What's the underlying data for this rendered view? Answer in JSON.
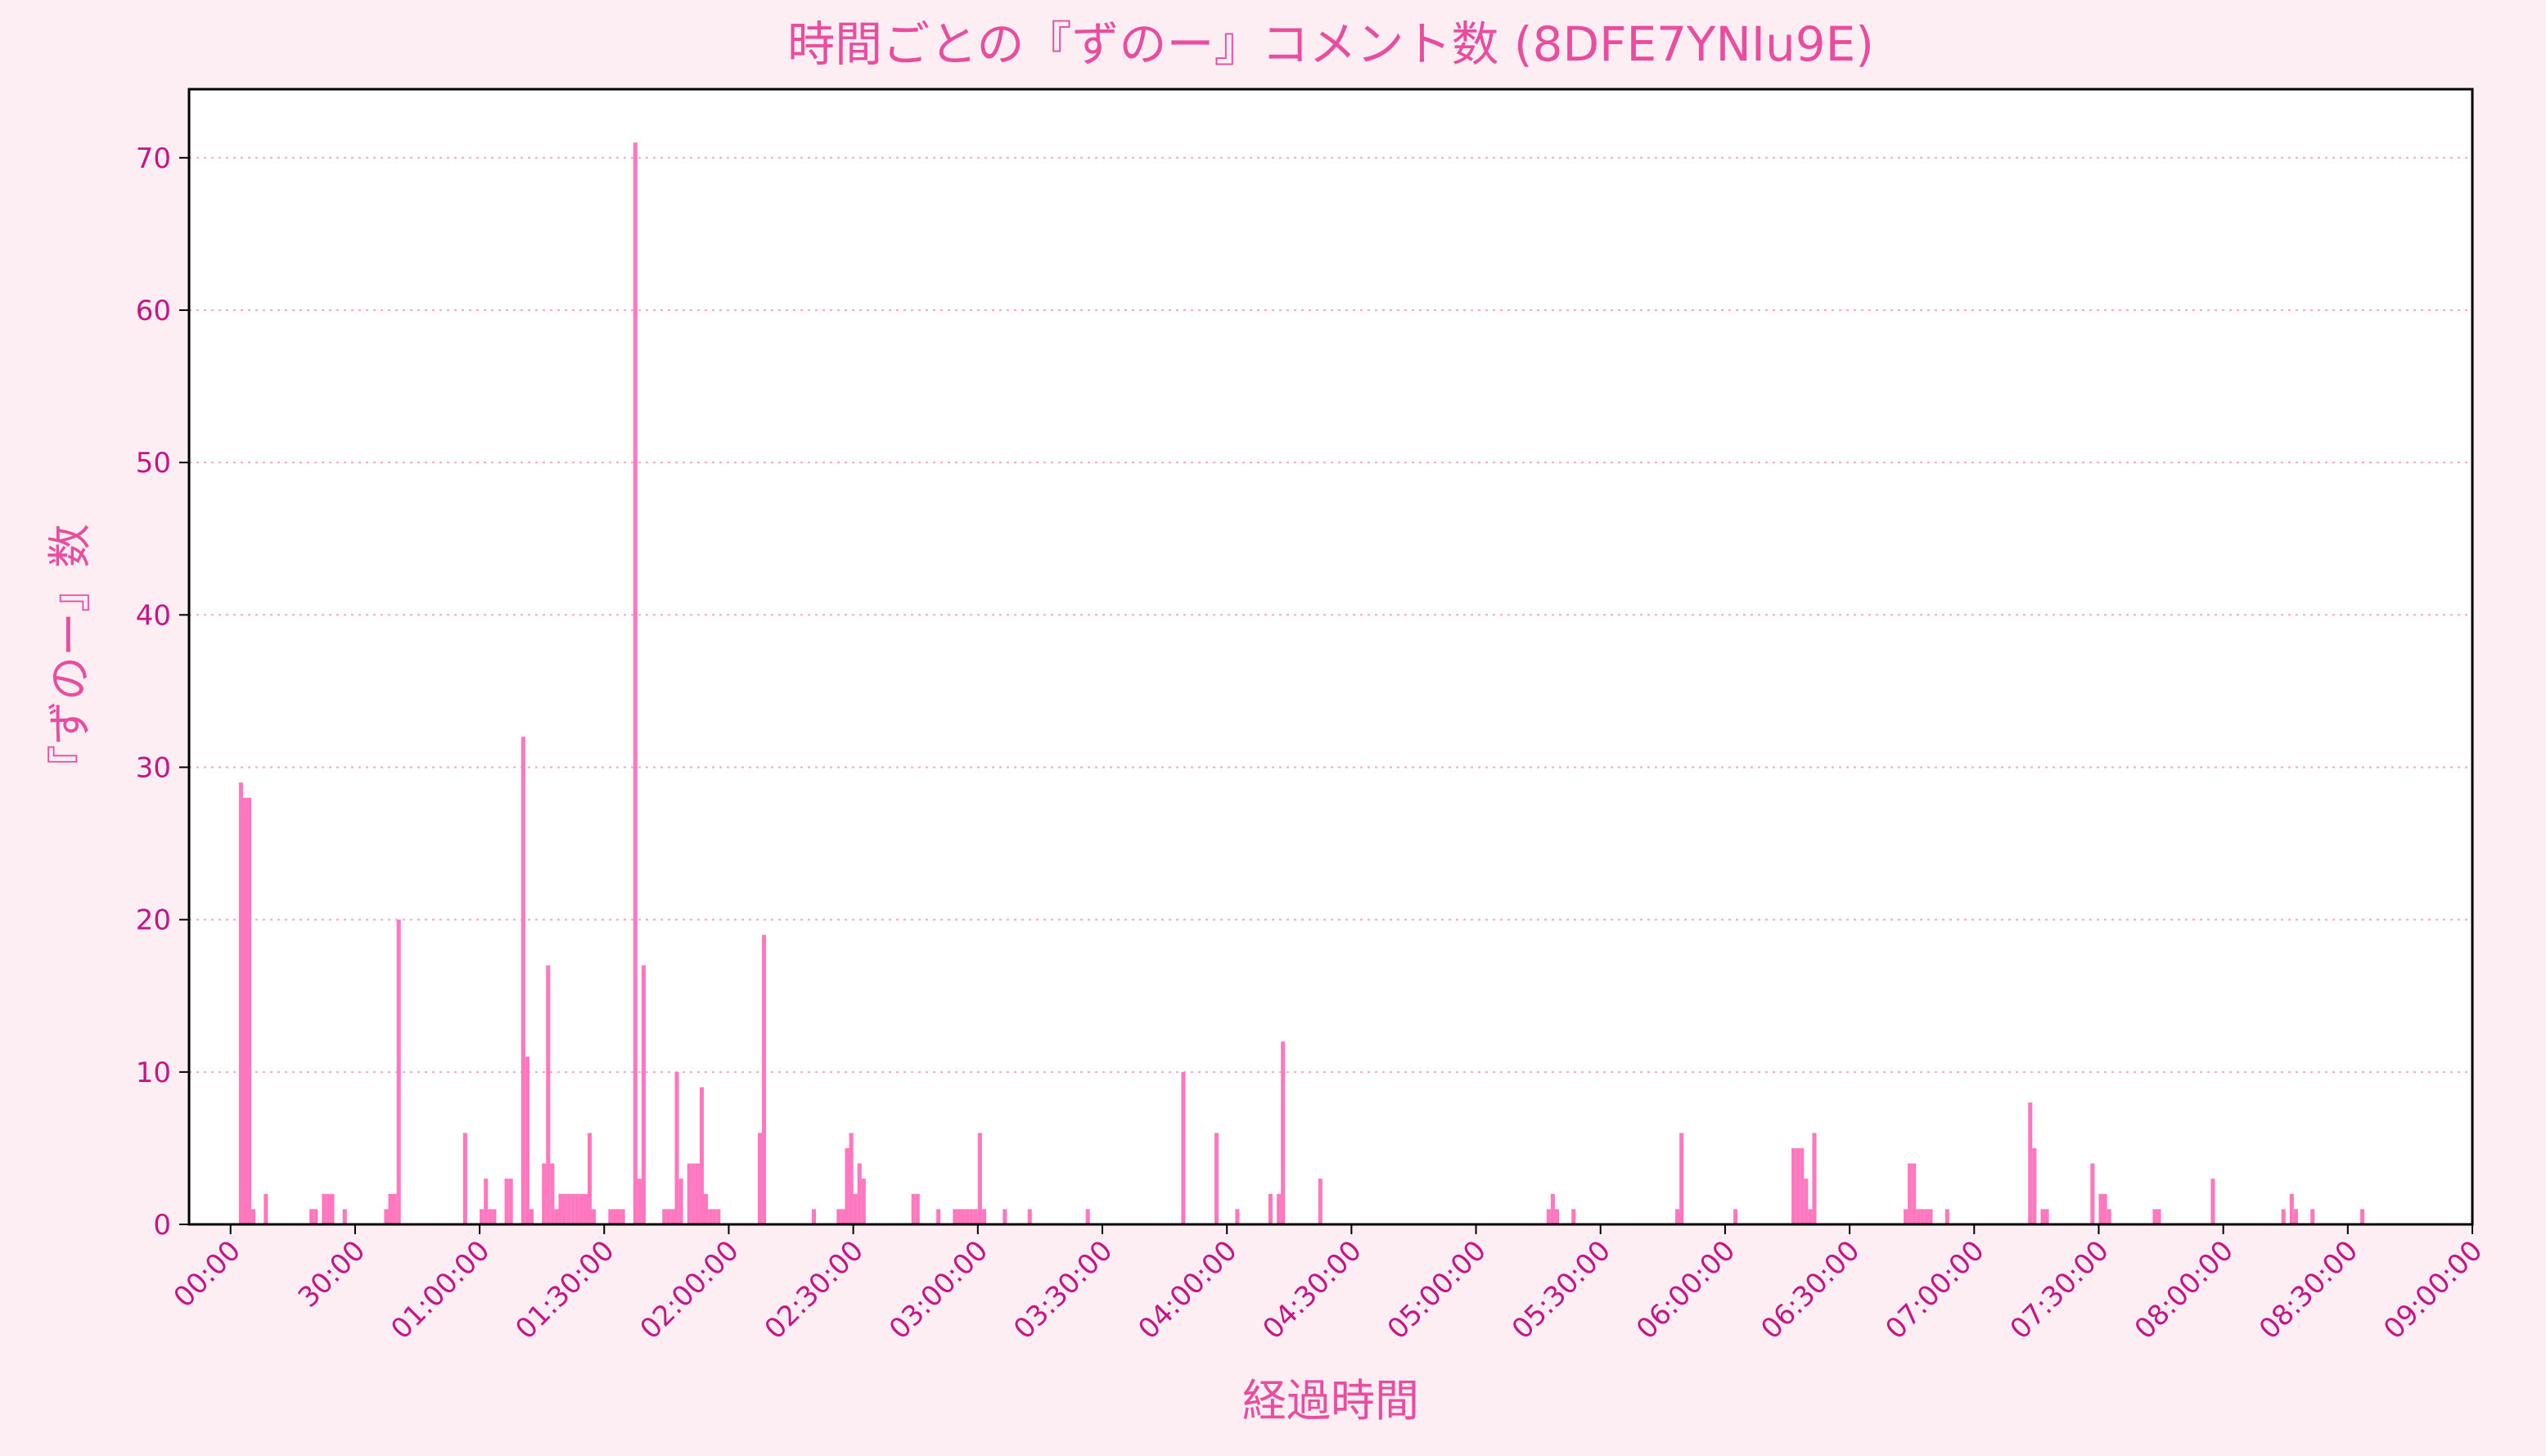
{
  "chart_data": {
    "type": "bar",
    "title": "時間ごとの『ずのー』コメント数 (8DFE7YNIu9E)",
    "xlabel": "経過時間",
    "ylabel": "『ずのー』数",
    "x_unit": "minutes elapsed",
    "xlim": [
      -10,
      540
    ],
    "ylim": [
      0,
      74.5
    ],
    "xticks": [
      0,
      30,
      60,
      90,
      120,
      150,
      180,
      210,
      240,
      270,
      300,
      330,
      360,
      390,
      420,
      450,
      480,
      510,
      540
    ],
    "xtick_labels": [
      "00:00",
      "30:00",
      "01:00:00",
      "01:30:00",
      "02:00:00",
      "02:30:00",
      "03:00:00",
      "03:30:00",
      "04:00:00",
      "04:30:00",
      "05:00:00",
      "05:30:00",
      "06:00:00",
      "06:30:00",
      "07:00:00",
      "07:30:00",
      "08:00:00",
      "08:30:00",
      "09:00:00"
    ],
    "yticks": [
      0,
      10,
      20,
      30,
      40,
      50,
      60,
      70
    ],
    "grid": "y dotted",
    "bin_minutes": 1,
    "x_end": 517,
    "bars": [
      [
        2,
        29
      ],
      [
        3,
        28
      ],
      [
        4,
        28
      ],
      [
        5,
        1
      ],
      [
        8,
        2
      ],
      [
        19,
        1
      ],
      [
        20,
        1
      ],
      [
        22,
        2
      ],
      [
        23,
        2
      ],
      [
        24,
        2
      ],
      [
        27,
        1
      ],
      [
        37,
        1
      ],
      [
        38,
        2
      ],
      [
        39,
        2
      ],
      [
        40,
        20
      ],
      [
        56,
        6
      ],
      [
        60,
        1
      ],
      [
        61,
        3
      ],
      [
        62,
        1
      ],
      [
        63,
        1
      ],
      [
        66,
        3
      ],
      [
        67,
        3
      ],
      [
        70,
        32
      ],
      [
        71,
        11
      ],
      [
        72,
        1
      ],
      [
        75,
        4
      ],
      [
        76,
        17
      ],
      [
        77,
        4
      ],
      [
        78,
        1
      ],
      [
        79,
        2
      ],
      [
        80,
        2
      ],
      [
        81,
        2
      ],
      [
        82,
        2
      ],
      [
        83,
        2
      ],
      [
        84,
        2
      ],
      [
        85,
        2
      ],
      [
        86,
        6
      ],
      [
        87,
        1
      ],
      [
        91,
        1
      ],
      [
        92,
        1
      ],
      [
        93,
        1
      ],
      [
        94,
        1
      ],
      [
        97,
        71
      ],
      [
        98,
        3
      ],
      [
        99,
        17
      ],
      [
        104,
        1
      ],
      [
        105,
        1
      ],
      [
        106,
        1
      ],
      [
        107,
        10
      ],
      [
        108,
        3
      ],
      [
        110,
        4
      ],
      [
        111,
        4
      ],
      [
        112,
        4
      ],
      [
        113,
        9
      ],
      [
        114,
        2
      ],
      [
        115,
        1
      ],
      [
        116,
        1
      ],
      [
        117,
        1
      ],
      [
        127,
        6
      ],
      [
        128,
        19
      ],
      [
        140,
        1
      ],
      [
        146,
        1
      ],
      [
        147,
        1
      ],
      [
        148,
        5
      ],
      [
        149,
        6
      ],
      [
        150,
        2
      ],
      [
        151,
        4
      ],
      [
        152,
        3
      ],
      [
        164,
        2
      ],
      [
        165,
        2
      ],
      [
        170,
        1
      ],
      [
        174,
        1
      ],
      [
        175,
        1
      ],
      [
        176,
        1
      ],
      [
        177,
        1
      ],
      [
        178,
        1
      ],
      [
        179,
        1
      ],
      [
        180,
        6
      ],
      [
        181,
        1
      ],
      [
        186,
        1
      ],
      [
        192,
        1
      ],
      [
        206,
        1
      ],
      [
        229,
        10
      ],
      [
        237,
        6
      ],
      [
        242,
        1
      ],
      [
        250,
        2
      ],
      [
        252,
        2
      ],
      [
        253,
        12
      ],
      [
        262,
        3
      ],
      [
        317,
        1
      ],
      [
        318,
        2
      ],
      [
        319,
        1
      ],
      [
        323,
        1
      ],
      [
        348,
        1
      ],
      [
        349,
        6
      ],
      [
        362,
        1
      ],
      [
        376,
        5
      ],
      [
        377,
        5
      ],
      [
        378,
        5
      ],
      [
        379,
        3
      ],
      [
        380,
        1
      ],
      [
        381,
        6
      ],
      [
        403,
        1
      ],
      [
        404,
        4
      ],
      [
        405,
        4
      ],
      [
        406,
        1
      ],
      [
        407,
        1
      ],
      [
        408,
        1
      ],
      [
        409,
        1
      ],
      [
        413,
        1
      ],
      [
        433,
        8
      ],
      [
        434,
        5
      ],
      [
        436,
        1
      ],
      [
        437,
        1
      ],
      [
        448,
        4
      ],
      [
        450,
        2
      ],
      [
        451,
        2
      ],
      [
        452,
        1
      ],
      [
        463,
        1
      ],
      [
        464,
        1
      ],
      [
        477,
        3
      ],
      [
        494,
        1
      ],
      [
        496,
        2
      ],
      [
        497,
        1
      ],
      [
        501,
        1
      ],
      [
        513,
        1
      ]
    ],
    "colors": {
      "bar": "#ff77be",
      "text": "#c71585",
      "label": "#ea4c9e",
      "grid": "#f5a8cc",
      "page": "#fdeef4",
      "plot": "#ffffff"
    }
  }
}
